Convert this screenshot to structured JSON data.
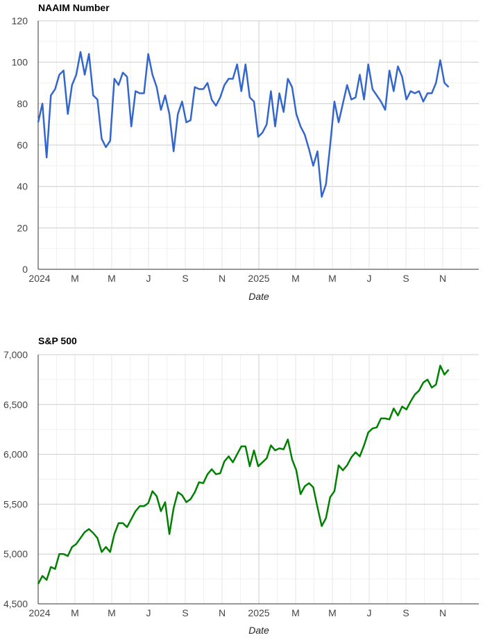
{
  "chart_data": [
    {
      "type": "line",
      "title": "NAAIM Number",
      "xlabel": "Date",
      "ylabel": "",
      "ylim": [
        0,
        120
      ],
      "yticks": [
        "0",
        "20",
        "40",
        "60",
        "80",
        "100",
        "120"
      ],
      "xticks": [
        "2024",
        "M",
        "M",
        "J",
        "S",
        "N",
        "2025",
        "M",
        "M",
        "J",
        "S",
        "N"
      ],
      "color": "#3366cc",
      "grid": true,
      "series": [
        {
          "name": "NAAIM Number",
          "values": [
            71,
            80,
            54,
            84,
            87,
            94,
            96,
            75,
            89,
            94,
            105,
            94,
            104,
            84,
            82,
            63,
            59,
            62,
            92,
            89,
            95,
            93,
            69,
            86,
            85,
            85,
            104,
            94,
            88,
            77,
            84,
            75,
            57,
            75,
            81,
            71,
            72,
            88,
            87,
            87,
            90,
            82,
            79,
            83,
            89,
            92,
            92,
            99,
            86,
            99,
            83,
            81,
            64,
            66,
            70,
            86,
            69,
            85,
            76,
            92,
            88,
            75,
            69,
            65,
            58,
            50,
            57,
            35,
            41,
            60,
            81,
            71,
            80,
            89,
            82,
            83,
            94,
            82,
            99,
            87,
            84,
            81,
            77,
            96,
            86,
            98,
            93,
            82,
            86,
            85,
            86,
            81,
            85,
            85,
            90,
            101,
            90,
            88
          ]
        }
      ]
    },
    {
      "type": "line",
      "title": "S&P 500",
      "xlabel": "Date",
      "ylabel": "",
      "ylim": [
        4500,
        7000
      ],
      "yticks": [
        "4,500",
        "5,000",
        "5,500",
        "6,000",
        "6,500",
        "7,000"
      ],
      "xticks": [
        "2024",
        "M",
        "M",
        "J",
        "S",
        "N",
        "2025",
        "M",
        "M",
        "J",
        "S",
        "N"
      ],
      "color": "#008000",
      "grid": true,
      "series": [
        {
          "name": "S&P 500",
          "values": [
            4700,
            4780,
            4740,
            4870,
            4850,
            5000,
            5000,
            4980,
            5070,
            5100,
            5160,
            5220,
            5250,
            5210,
            5160,
            5020,
            5070,
            5020,
            5200,
            5310,
            5310,
            5270,
            5350,
            5430,
            5480,
            5480,
            5510,
            5630,
            5580,
            5430,
            5520,
            5200,
            5460,
            5620,
            5590,
            5520,
            5550,
            5620,
            5720,
            5710,
            5800,
            5850,
            5800,
            5810,
            5930,
            5980,
            5920,
            6000,
            6080,
            6080,
            5880,
            6040,
            5880,
            5920,
            5960,
            6090,
            6040,
            6060,
            6050,
            6150,
            5950,
            5840,
            5600,
            5680,
            5710,
            5670,
            5470,
            5280,
            5360,
            5570,
            5630,
            5890,
            5840,
            5890,
            5970,
            6020,
            5980,
            6090,
            6220,
            6260,
            6270,
            6360,
            6360,
            6350,
            6460,
            6390,
            6480,
            6450,
            6530,
            6600,
            6640,
            6720,
            6750,
            6670,
            6700,
            6890,
            6800,
            6850
          ]
        }
      ]
    }
  ]
}
